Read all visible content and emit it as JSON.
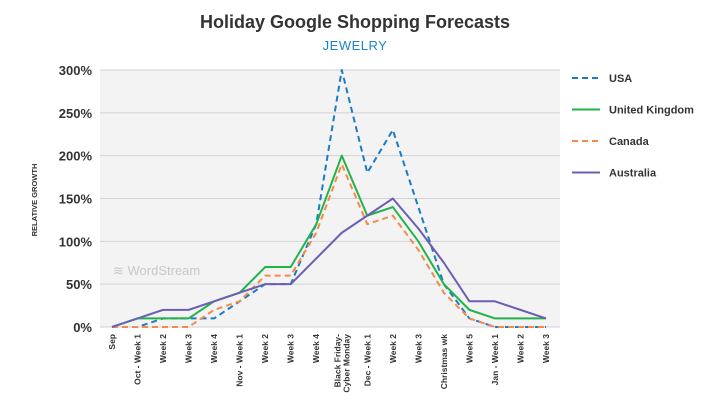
{
  "chart_data": {
    "type": "line",
    "title": "Holiday Google Shopping Forecasts",
    "subtitle": "JEWELRY",
    "ylabel": "RELATIVE GROWTH",
    "xlabel": "",
    "watermark": "WordStream",
    "categories": [
      "Sep",
      "Oct - Week 1",
      "Week 2",
      "Week 3",
      "Week 4",
      "Nov - Week 1",
      "Week 2",
      "Week 3",
      "Week 4",
      "Black Friday-\nCyber Monday",
      "Dec - Week 1",
      "Week 2",
      "Week 3",
      "Christmas wk",
      "Week 5",
      "Jan - Week 1",
      "Week 2",
      "Week 3"
    ],
    "ylim": [
      0,
      300
    ],
    "yticks": [
      0,
      50,
      100,
      150,
      200,
      250,
      300
    ],
    "ytick_labels": [
      "0%",
      "50%",
      "100%",
      "150%",
      "200%",
      "250%",
      "300%"
    ],
    "grid": true,
    "legend_position": "right",
    "series": [
      {
        "name": "USA",
        "color": "#1b7cc4",
        "dashed": true,
        "values": [
          0,
          0,
          10,
          10,
          10,
          30,
          50,
          50,
          120,
          300,
          180,
          230,
          140,
          50,
          10,
          0,
          0,
          0
        ]
      },
      {
        "name": "United Kingdom",
        "color": "#22b34a",
        "dashed": false,
        "values": [
          0,
          10,
          10,
          10,
          30,
          40,
          70,
          70,
          120,
          200,
          130,
          140,
          100,
          50,
          20,
          10,
          10,
          10
        ]
      },
      {
        "name": "Canada",
        "color": "#f58a4b",
        "dashed": true,
        "values": [
          0,
          0,
          0,
          0,
          20,
          30,
          60,
          60,
          110,
          190,
          120,
          130,
          90,
          40,
          10,
          0,
          0,
          0
        ]
      },
      {
        "name": "Australia",
        "color": "#6b5fb5",
        "dashed": false,
        "values": [
          0,
          10,
          20,
          20,
          30,
          40,
          50,
          50,
          80,
          110,
          130,
          150,
          115,
          75,
          30,
          30,
          20,
          10
        ]
      }
    ]
  }
}
